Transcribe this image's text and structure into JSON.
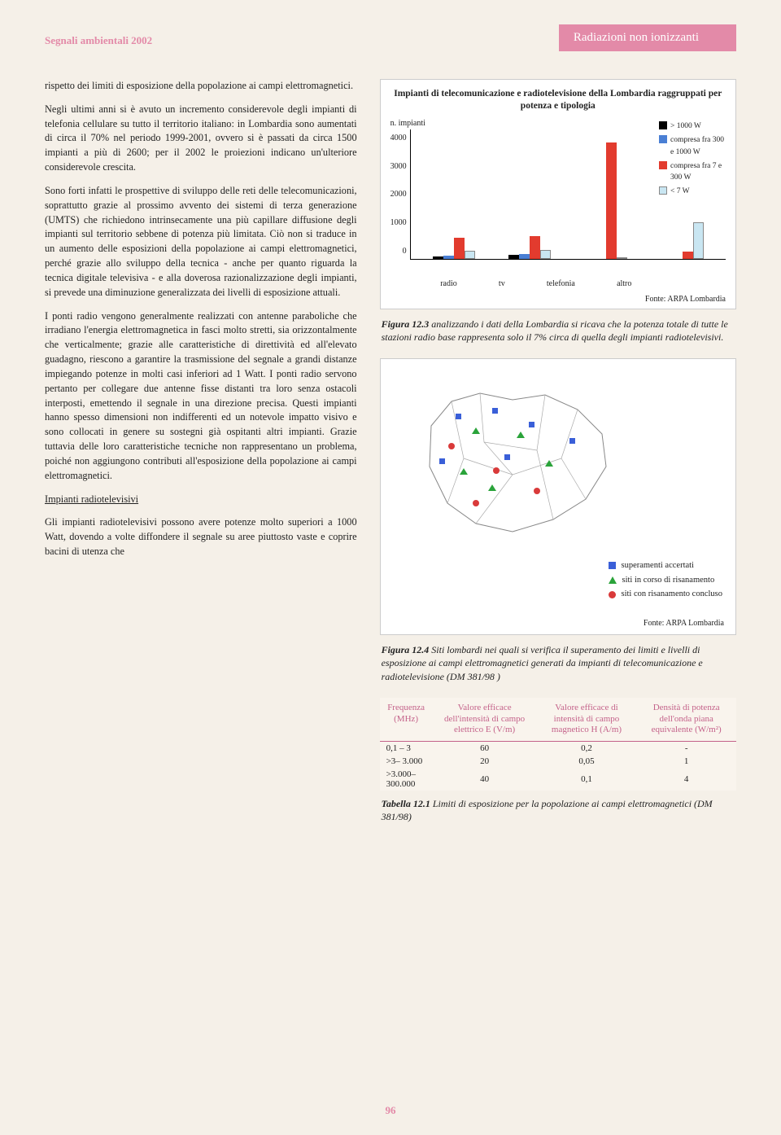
{
  "header": {
    "left": "Segnali ambientali 2002",
    "pill": "Radiazioni non ionizzanti"
  },
  "body": {
    "p1": "rispetto dei limiti di esposizione della popolazione ai campi elettromagnetici.",
    "p2": "Negli ultimi anni si è avuto un incremento considerevole degli impianti di telefonia cellulare su tutto il territorio italiano: in Lombardia sono aumentati di circa il 70% nel periodo 1999-2001, ovvero si è passati da circa 1500 impianti a più di 2600; per il 2002 le proiezioni indicano un'ulteriore considerevole crescita.",
    "p3": "Sono forti infatti le prospettive di sviluppo delle reti delle telecomunicazioni, soprattutto grazie al prossimo avvento dei sistemi di terza generazione (UMTS) che richiedono intrinsecamente una più capillare diffusione degli impianti sul territorio sebbene di potenza più limitata. Ciò non si traduce in un aumento delle esposizioni della popolazione ai campi elettromagnetici, perché grazie allo sviluppo della tecnica - anche per quanto riguarda la tecnica digitale televisiva - e alla doverosa razionalizzazione degli impianti, si prevede una diminuzione generalizzata dei livelli di esposizione attuali.",
    "p4": "I ponti radio vengono generalmente realizzati con antenne paraboliche che irradiano l'energia elettromagnetica in fasci molto stretti, sia orizzontalmente che verticalmente; grazie alle caratteristiche di direttività ed all'elevato guadagno, riescono a garantire la trasmissione del segnale a grandi distanze impiegando potenze in molti casi inferiori ad 1 Watt. I ponti radio servono pertanto per collegare due antenne fisse distanti tra loro senza ostacoli interposti, emettendo il segnale in una direzione precisa. Questi impianti hanno spesso dimensioni non indifferenti ed un notevole impatto visivo e sono collocati in genere su sostegni già ospitanti altri impianti. Grazie tuttavia delle loro caratteristiche tecniche non rappresentano un problema, poiché non aggiungono contributi all'esposizione della popolazione ai campi elettromagnetici.",
    "h1": "Impianti radiotelevisivi",
    "p5": "Gli impianti radiotelevisivi possono avere potenze molto superiori a 1000 Watt, dovendo a volte diffondere il segnale su aree piuttosto vaste e coprire bacini di utenza che"
  },
  "chart": {
    "title": "Impianti di telecomunicazione e radiotelevisione della Lombardia raggruppati per potenza e tipologia",
    "ylabel": "n. impianti",
    "ymax": 4000,
    "yticks": [
      "4000",
      "3000",
      "2000",
      "1000",
      "0"
    ],
    "categories": [
      "radio",
      "tv",
      "telefonia",
      "altro"
    ],
    "series": [
      {
        "name": "> 1000 W",
        "color": "#000000"
      },
      {
        "name": "compresa fra 300 e 1000 W",
        "color": "#4a7fd4"
      },
      {
        "name": "compresa fra 7 e 300 W",
        "color": "#e23b2e"
      },
      {
        "name": "< 7 W",
        "color": "#c9e6f2"
      }
    ],
    "data": {
      "radio": {
        "gt1000": 70,
        "300_1000": 90,
        "7_300": 680,
        "lt7": 250
      },
      "tv": {
        "gt1000": 120,
        "300_1000": 140,
        "7_300": 720,
        "lt7": 280
      },
      "telefonia": {
        "gt1000": 0,
        "300_1000": 0,
        "7_300": 3700,
        "lt7": 0
      },
      "altro": {
        "gt1000": 0,
        "300_1000": 0,
        "7_300": 240,
        "lt7": 1150
      }
    },
    "source": "Fonte: ARPA Lombardia"
  },
  "caption1": {
    "label": "Figura 12.3",
    "text": " analizzando i dati della Lombardia si ricava che la potenza totale di tutte le stazioni radio base rappresenta solo il 7% circa di quella degli impianti radiotelevisivi."
  },
  "map": {
    "legend": [
      {
        "type": "sq",
        "color": "#3a5fd8",
        "label": "superamenti accertati"
      },
      {
        "type": "tri",
        "color": "#2aa33a",
        "label": "siti in corso di risanamento"
      },
      {
        "type": "circ",
        "color": "#d93a3a",
        "label": "siti con risanamento concluso"
      }
    ],
    "source": "Fonte: ARPA Lombardia"
  },
  "caption2": {
    "label": "Figura 12.4",
    "text": " Siti lombardi nei quali si verifica il superamento dei limiti e livelli di esposizione ai campi elettromagnetici generati da impianti di telecomunicazione e radiotelevisione (DM 381/98 )"
  },
  "table": {
    "headers": [
      "Frequenza (MHz)",
      "Valore efficace dell'intensità di campo elettrico E (V/m)",
      "Valore efficace di intensità di campo magnetico H (A/m)",
      "Densità di potenza dell'onda piana equivalente (W/m²)"
    ],
    "rows": [
      [
        "0,1 – 3",
        "60",
        "0,2",
        "-"
      ],
      [
        ">3– 3.000",
        "20",
        "0,05",
        "1"
      ],
      [
        ">3.000– 300.000",
        "40",
        "0,1",
        "4"
      ]
    ]
  },
  "caption3": {
    "label": "Tabella 12.1",
    "text": " Limiti di esposizione per la popolazione ai campi elettromagnetici (DM 381/98)"
  },
  "page_num": "96"
}
